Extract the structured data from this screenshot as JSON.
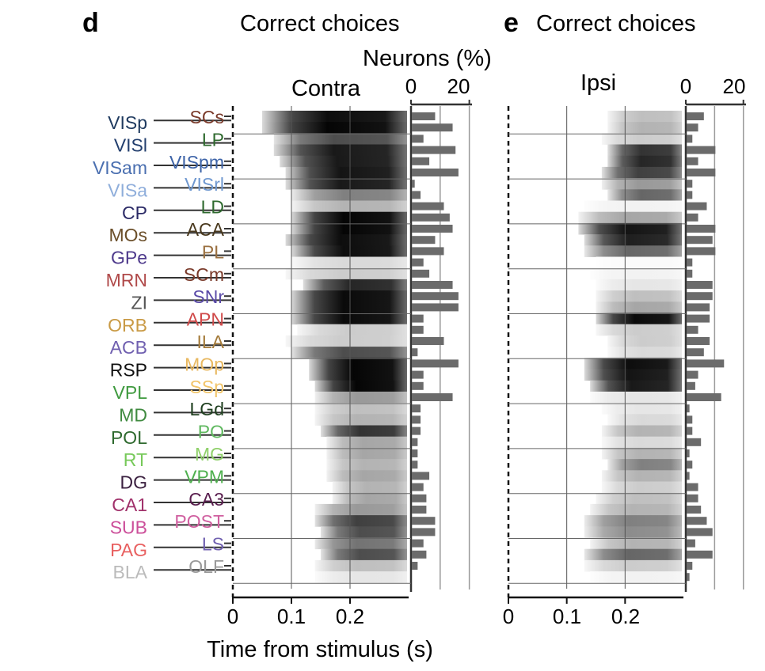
{
  "panels": {
    "d": {
      "letter": "d",
      "title": "Correct choices",
      "subtitle": "Contra"
    },
    "e": {
      "letter": "e",
      "title": "Correct choices",
      "subtitle": "Ipsi"
    }
  },
  "neurons_axis": {
    "label": "Neurons (%)",
    "ticks": [
      "0",
      "20"
    ],
    "tick_values": [
      0,
      20
    ],
    "range": [
      0,
      22
    ],
    "gridlines": [
      10,
      20
    ]
  },
  "time_axis": {
    "label": "Time from stimulus (s)",
    "ticks": [
      "0",
      "0.1",
      "0.2"
    ],
    "tick_values": [
      0,
      0.1,
      0.2
    ],
    "range": [
      0,
      0.3
    ],
    "gridlines": [
      0.1,
      0.2
    ]
  },
  "areas_left": [
    {
      "name": "VISp",
      "color": "#1f3a5f"
    },
    {
      "name": "VISl",
      "color": "#233f6e"
    },
    {
      "name": "VISam",
      "color": "#4a6fb0"
    },
    {
      "name": "VISa",
      "color": "#8faedb"
    },
    {
      "name": "CP",
      "color": "#2b2a66"
    },
    {
      "name": "MOs",
      "color": "#6b4f2a"
    },
    {
      "name": "GPe",
      "color": "#4e3a8c"
    },
    {
      "name": "MRN",
      "color": "#b04a4a"
    },
    {
      "name": "ZI",
      "color": "#555555"
    },
    {
      "name": "ORB",
      "color": "#c99a45"
    },
    {
      "name": "ACB",
      "color": "#7060b0"
    },
    {
      "name": "RSP",
      "color": "#111111"
    },
    {
      "name": "VPL",
      "color": "#3f9a3f"
    },
    {
      "name": "MD",
      "color": "#3f8a3f"
    },
    {
      "name": "POL",
      "color": "#2f6a2f"
    },
    {
      "name": "RT",
      "color": "#77c95a"
    },
    {
      "name": "DG",
      "color": "#3a1f3f"
    },
    {
      "name": "CA1",
      "color": "#a0306a"
    },
    {
      "name": "SUB",
      "color": "#cc4f9a"
    },
    {
      "name": "PAG",
      "color": "#e86060"
    },
    {
      "name": "BLA",
      "color": "#bbbbbb"
    }
  ],
  "areas_right": [
    {
      "name": "SCs",
      "color": "#7a3a2a"
    },
    {
      "name": "LP",
      "color": "#2f6a2f"
    },
    {
      "name": "VISpm",
      "color": "#3e64a8"
    },
    {
      "name": "VISrl",
      "color": "#6f98d0"
    },
    {
      "name": "LD",
      "color": "#2f6a2f"
    },
    {
      "name": "ACA",
      "color": "#4a3a1f"
    },
    {
      "name": "PL",
      "color": "#9a7040"
    },
    {
      "name": "SCm",
      "color": "#7a3a2a"
    },
    {
      "name": "SNr",
      "color": "#5a4aa8"
    },
    {
      "name": "APN",
      "color": "#d04a4a"
    },
    {
      "name": "ILA",
      "color": "#a57c3c"
    },
    {
      "name": "MOp",
      "color": "#e8b860"
    },
    {
      "name": "SSp",
      "color": "#f2c56a"
    },
    {
      "name": "LGd",
      "color": "#1f3f1f"
    },
    {
      "name": "PO",
      "color": "#5fb85f"
    },
    {
      "name": "MG",
      "color": "#8fd06a"
    },
    {
      "name": "VPM",
      "color": "#4fb04f"
    },
    {
      "name": "CA3",
      "color": "#5a1f4f"
    },
    {
      "name": "POST",
      "color": "#d060a0"
    },
    {
      "name": "LS",
      "color": "#7060b0"
    },
    {
      "name": "OLF",
      "color": "#999999"
    }
  ],
  "chart_data": [
    {
      "type": "heatmap",
      "panel": "d",
      "title": "Correct choices",
      "subtitle": "Contra",
      "xlabel": "Time from stimulus (s)",
      "xlim": [
        0,
        0.3
      ],
      "x_ticks": [
        0,
        0.1,
        0.2
      ],
      "rows": [
        "SCs",
        "VISp",
        "LP",
        "VISl",
        "VISpm",
        "VISam",
        "VISrl",
        "VISa",
        "LD",
        "CP",
        "ACA",
        "MOs",
        "PL",
        "GPe",
        "SCm",
        "MRN",
        "SNr",
        "ZI",
        "APN",
        "ORB",
        "ILA",
        "ACB",
        "MOp",
        "RSP",
        "SSp",
        "VPL",
        "LGd",
        "MD",
        "PO",
        "POL",
        "MG",
        "RT",
        "VPM",
        "DG",
        "CA3",
        "CA1",
        "POST",
        "SUB",
        "LS",
        "PAG",
        "OLF",
        "BLA"
      ],
      "onset_s": [
        0.05,
        0.05,
        0.07,
        0.07,
        0.08,
        0.09,
        0.09,
        0.1,
        0.1,
        0.1,
        0.1,
        0.09,
        0.1,
        0.1,
        0.09,
        0.12,
        0.1,
        0.1,
        0.1,
        0.11,
        0.09,
        0.1,
        0.13,
        0.13,
        0.14,
        0.14,
        0.14,
        0.14,
        0.15,
        0.16,
        0.16,
        0.16,
        0.16,
        0.17,
        0.17,
        0.14,
        0.14,
        0.15,
        0.14,
        0.15,
        0.14,
        0.14
      ],
      "peak": [
        0.95,
        0.98,
        0.7,
        0.9,
        0.9,
        0.92,
        0.9,
        0.5,
        0.3,
        0.98,
        0.98,
        0.95,
        0.95,
        0.15,
        0.2,
        0.85,
        0.96,
        0.96,
        0.96,
        0.2,
        0.2,
        0.7,
        0.98,
        0.98,
        0.98,
        0.4,
        0.25,
        0.3,
        0.8,
        0.35,
        0.35,
        0.3,
        0.35,
        0.3,
        0.35,
        0.4,
        0.75,
        0.7,
        0.55,
        0.7,
        0.25,
        0.1
      ]
    },
    {
      "type": "bar",
      "panel": "d",
      "xlabel": "Neurons (%)",
      "xlim": [
        0,
        22
      ],
      "categories": [
        "SCs",
        "VISp",
        "LP",
        "VISl",
        "VISpm",
        "VISam",
        "VISrl",
        "VISa",
        "LD",
        "CP",
        "ACA",
        "MOs",
        "PL",
        "GPe",
        "SCm",
        "MRN",
        "SNr",
        "ZI",
        "APN",
        "ORB",
        "ILA",
        "ACB",
        "MOp",
        "RSP",
        "SSp",
        "VPL",
        "LGd",
        "MD",
        "PO",
        "POL",
        "MG",
        "RT",
        "VPM",
        "DG",
        "CA3",
        "CA1",
        "POST",
        "SUB",
        "LS",
        "PAG",
        "OLF",
        "BLA"
      ],
      "values": [
        8,
        14,
        4,
        15,
        6,
        16,
        1,
        3,
        11,
        13,
        14,
        8,
        11,
        4,
        6,
        14,
        16,
        16,
        4,
        4,
        11,
        2,
        16,
        4,
        4,
        14,
        3,
        3,
        3,
        2,
        2,
        2,
        6,
        4,
        5,
        5,
        8,
        8,
        4,
        5,
        2,
        0
      ]
    },
    {
      "type": "heatmap",
      "panel": "e",
      "title": "Correct choices",
      "subtitle": "Ipsi",
      "xlabel": "Time from stimulus (s)",
      "xlim": [
        0,
        0.3
      ],
      "x_ticks": [
        0,
        0.1,
        0.2
      ],
      "rows": [
        "SCs",
        "VISp",
        "LP",
        "VISl",
        "VISpm",
        "VISam",
        "VISrl",
        "VISa",
        "LD",
        "CP",
        "ACA",
        "MOs",
        "PL",
        "GPe",
        "SCm",
        "MRN",
        "SNr",
        "ZI",
        "APN",
        "ORB",
        "ILA",
        "ACB",
        "MOp",
        "RSP",
        "SSp",
        "VPL",
        "LGd",
        "MD",
        "PO",
        "POL",
        "MG",
        "RT",
        "VPM",
        "DG",
        "CA3",
        "CA1",
        "POST",
        "SUB",
        "LS",
        "PAG",
        "OLF",
        "BLA"
      ],
      "onset_s": [
        0.17,
        0.17,
        0.16,
        0.17,
        0.17,
        0.16,
        0.16,
        0.17,
        0.13,
        0.12,
        0.12,
        0.13,
        0.13,
        0.15,
        0.14,
        0.15,
        0.15,
        0.15,
        0.15,
        0.15,
        0.17,
        0.17,
        0.13,
        0.13,
        0.14,
        0.14,
        0.16,
        0.17,
        0.16,
        0.16,
        0.16,
        0.17,
        0.16,
        0.16,
        0.15,
        0.14,
        0.13,
        0.13,
        0.14,
        0.13,
        0.13,
        0.14
      ],
      "peak": [
        0.25,
        0.3,
        0.2,
        0.8,
        0.85,
        0.75,
        0.4,
        0.6,
        0.05,
        0.35,
        0.92,
        0.88,
        0.6,
        0.02,
        0.05,
        0.1,
        0.25,
        0.35,
        0.96,
        0.2,
        0.2,
        0.15,
        0.95,
        0.92,
        0.9,
        0.1,
        0.1,
        0.15,
        0.3,
        0.15,
        0.3,
        0.5,
        0.3,
        0.2,
        0.25,
        0.3,
        0.5,
        0.45,
        0.3,
        0.6,
        0.2,
        0.05
      ]
    },
    {
      "type": "bar",
      "panel": "e",
      "xlabel": "Neurons (%)",
      "xlim": [
        0,
        22
      ],
      "categories": [
        "SCs",
        "VISp",
        "LP",
        "VISl",
        "VISpm",
        "VISam",
        "VISrl",
        "VISa",
        "LD",
        "CP",
        "ACA",
        "MOs",
        "PL",
        "GPe",
        "SCm",
        "MRN",
        "SNr",
        "ZI",
        "APN",
        "ORB",
        "ILA",
        "ACB",
        "MOp",
        "RSP",
        "SSp",
        "VPL",
        "LGd",
        "MD",
        "PO",
        "POL",
        "MG",
        "RT",
        "VPM",
        "DG",
        "CA3",
        "CA1",
        "POST",
        "SUB",
        "LS",
        "PAG",
        "OLF",
        "BLA"
      ],
      "values": [
        6,
        4,
        2,
        10,
        4,
        10,
        2,
        2,
        7,
        4,
        10,
        9,
        10,
        2,
        2,
        9,
        9,
        8,
        8,
        4,
        8,
        6,
        13,
        4,
        3,
        12,
        1,
        2,
        2,
        5,
        1,
        2,
        1,
        4,
        4,
        5,
        7,
        9,
        3,
        9,
        2,
        1
      ]
    }
  ]
}
